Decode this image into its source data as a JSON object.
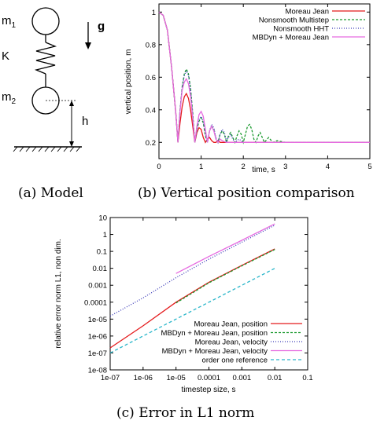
{
  "model": {
    "labels": [
      "m",
      "1",
      "K",
      "m",
      "2",
      "g",
      "h"
    ],
    "caption": "(a)  Model"
  },
  "chart_data": [
    {
      "type": "line",
      "caption": "(b)  Vertical position comparison",
      "xlabel": "time, s",
      "ylabel": "vertical position, m",
      "xlim": [
        0,
        5
      ],
      "ylim": [
        0.1,
        1.05
      ],
      "xticks": [
        "0",
        "1",
        "2",
        "3",
        "4",
        "5"
      ],
      "yticks": [
        "0.2",
        "0.4",
        "0.6",
        "0.8",
        "1"
      ],
      "grid": false,
      "legend_position": "top-right",
      "series": [
        {
          "name": "Moreau Jean",
          "color": "#e41a1c",
          "dash": "solid",
          "x": [
            0,
            0.1,
            0.2,
            0.3,
            0.4,
            0.45,
            0.5,
            0.55,
            0.6,
            0.65,
            0.7,
            0.75,
            0.8,
            0.85,
            0.9,
            0.95,
            1.0,
            1.05,
            1.1,
            1.15,
            1.2,
            1.25,
            1.3,
            1.35,
            1.4,
            1.45,
            1.5,
            1.6,
            1.7,
            1.8,
            2.0,
            3.0,
            4.0,
            5.0
          ],
          "y": [
            1.0,
            0.98,
            0.89,
            0.66,
            0.38,
            0.2,
            0.32,
            0.42,
            0.48,
            0.5,
            0.47,
            0.4,
            0.3,
            0.2,
            0.26,
            0.29,
            0.28,
            0.23,
            0.2,
            0.22,
            0.23,
            0.21,
            0.2,
            0.2,
            0.21,
            0.2,
            0.2,
            0.2,
            0.2,
            0.2,
            0.2,
            0.2,
            0.2,
            0.2
          ]
        },
        {
          "name": "Nonsmooth Multistep",
          "color": "#1a9a2e",
          "dash": "3,2",
          "x": [
            0,
            0.1,
            0.2,
            0.3,
            0.4,
            0.45,
            0.5,
            0.55,
            0.6,
            0.65,
            0.7,
            0.75,
            0.8,
            0.85,
            0.9,
            0.95,
            1.0,
            1.05,
            1.1,
            1.15,
            1.2,
            1.25,
            1.3,
            1.35,
            1.4,
            1.45,
            1.5,
            1.55,
            1.6,
            1.65,
            1.7,
            1.75,
            1.8,
            1.85,
            1.9,
            1.95,
            2.0,
            2.05,
            2.1,
            2.15,
            2.2,
            2.25,
            2.3,
            2.35,
            2.4,
            2.5,
            2.6,
            2.7,
            2.8,
            3.0,
            3.5,
            4.0,
            5.0
          ],
          "y": [
            1.0,
            0.98,
            0.89,
            0.66,
            0.38,
            0.2,
            0.4,
            0.54,
            0.62,
            0.65,
            0.62,
            0.53,
            0.38,
            0.2,
            0.28,
            0.33,
            0.35,
            0.32,
            0.24,
            0.2,
            0.27,
            0.3,
            0.28,
            0.22,
            0.2,
            0.25,
            0.27,
            0.25,
            0.2,
            0.24,
            0.26,
            0.23,
            0.2,
            0.24,
            0.27,
            0.25,
            0.2,
            0.25,
            0.3,
            0.31,
            0.28,
            0.22,
            0.2,
            0.24,
            0.26,
            0.2,
            0.23,
            0.2,
            0.21,
            0.2,
            0.2,
            0.2,
            0.2
          ]
        },
        {
          "name": "Nonsmooth HHT",
          "color": "#3a3ab8",
          "dash": "1,2",
          "x": [
            0,
            0.1,
            0.2,
            0.3,
            0.4,
            0.45,
            0.5,
            0.55,
            0.6,
            0.65,
            0.7,
            0.75,
            0.8,
            0.85,
            0.9,
            0.95,
            1.0,
            1.05,
            1.1,
            1.15,
            1.2,
            1.25,
            1.3,
            1.35,
            1.4,
            1.45,
            1.5,
            1.55,
            1.6,
            1.65,
            1.7,
            1.75,
            1.8,
            1.9,
            2.0,
            2.2,
            3.0,
            5.0
          ],
          "y": [
            1.0,
            0.98,
            0.89,
            0.66,
            0.38,
            0.2,
            0.4,
            0.54,
            0.61,
            0.64,
            0.61,
            0.52,
            0.37,
            0.2,
            0.28,
            0.34,
            0.36,
            0.33,
            0.25,
            0.2,
            0.27,
            0.31,
            0.29,
            0.23,
            0.2,
            0.25,
            0.28,
            0.26,
            0.21,
            0.23,
            0.25,
            0.22,
            0.2,
            0.22,
            0.2,
            0.2,
            0.2,
            0.2
          ]
        },
        {
          "name": "MBDyn + Moreau Jean",
          "color": "#e66be0",
          "dash": "solid",
          "x": [
            0,
            0.1,
            0.2,
            0.3,
            0.4,
            0.45,
            0.5,
            0.55,
            0.6,
            0.65,
            0.7,
            0.75,
            0.8,
            0.85,
            0.9,
            0.95,
            1.0,
            1.05,
            1.1,
            1.15,
            1.2,
            1.25,
            1.3,
            1.35,
            1.4,
            1.45,
            1.5,
            1.6,
            1.7,
            1.8,
            2.0,
            3.0,
            5.0
          ],
          "y": [
            1.0,
            0.98,
            0.89,
            0.66,
            0.38,
            0.2,
            0.39,
            0.52,
            0.57,
            0.59,
            0.56,
            0.48,
            0.35,
            0.2,
            0.3,
            0.37,
            0.39,
            0.36,
            0.28,
            0.2,
            0.27,
            0.3,
            0.27,
            0.22,
            0.2,
            0.22,
            0.21,
            0.2,
            0.2,
            0.2,
            0.2,
            0.2,
            0.2
          ]
        }
      ]
    },
    {
      "type": "line",
      "caption": "(c)  Error in L1 norm",
      "xlabel": "timestep size, s",
      "ylabel": "relative error norm L1, non dim.",
      "xscale": "log",
      "yscale": "log",
      "xlim": [
        1e-07,
        0.1
      ],
      "ylim": [
        1e-08,
        10
      ],
      "xticks": [
        "1e-07",
        "1e-06",
        "1e-05",
        "0.0001",
        "0.001",
        "0.01",
        "0.1"
      ],
      "yticks": [
        "1e-08",
        "1e-07",
        "1e-06",
        "1e-05",
        "0.0001",
        "0.001",
        "0.01",
        "0.1",
        "1",
        "10"
      ],
      "grid": false,
      "legend_position": "bottom-right",
      "series": [
        {
          "name": "Moreau Jean, position",
          "color": "#e41a1c",
          "dash": "solid",
          "x": [
            1e-07,
            1e-06,
            1e-05,
            0.0001,
            0.001,
            0.01
          ],
          "y": [
            2e-07,
            4e-06,
            0.0001,
            0.0015,
            0.015,
            0.14
          ]
        },
        {
          "name": "MBDyn + Moreau Jean, position",
          "color": "#1a9a2e",
          "dash": "3,2",
          "x": [
            1e-05,
            0.0001,
            0.001,
            0.01
          ],
          "y": [
            9e-05,
            0.0014,
            0.014,
            0.13
          ]
        },
        {
          "name": "Moreau Jean, velocity",
          "color": "#3a3ab8",
          "dash": "1,2",
          "x": [
            1e-07,
            1e-06,
            1e-05,
            0.0001,
            0.001,
            0.01
          ],
          "y": [
            1.5e-05,
            0.00018,
            0.0028,
            0.035,
            0.35,
            3.5
          ]
        },
        {
          "name": "MBDyn + Moreau Jean, velocity",
          "color": "#e66be0",
          "dash": "solid",
          "x": [
            1e-05,
            0.0001,
            0.001,
            0.01
          ],
          "y": [
            0.005,
            0.05,
            0.45,
            4.2
          ]
        },
        {
          "name": "order one reference",
          "color": "#27b5c9",
          "dash": "4,3",
          "x": [
            1e-07,
            0.01
          ],
          "y": [
            1e-07,
            0.01
          ]
        }
      ]
    }
  ]
}
